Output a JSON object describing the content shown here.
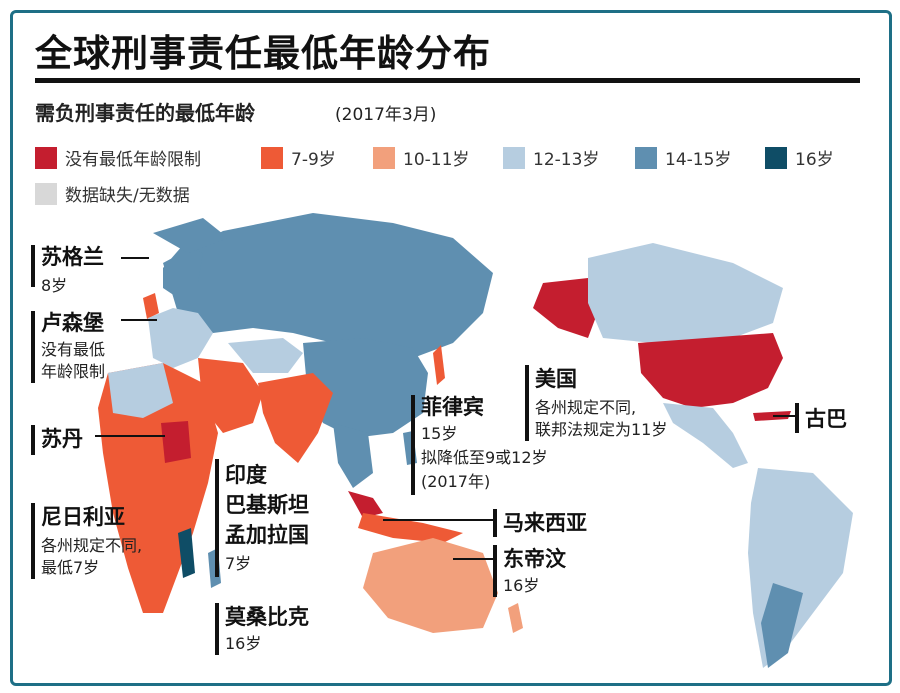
{
  "title": "全球刑事责任最低年龄分布",
  "subtitle": "需负刑事责任的最低年龄",
  "subtitle_date": "(2017年3月)",
  "legend": [
    {
      "label": "没有最低年龄限制",
      "color": "#c41e2f"
    },
    {
      "label": "7-9岁",
      "color": "#ee5a36"
    },
    {
      "label": "10-11岁",
      "color": "#f2a07c"
    },
    {
      "label": "12-13岁",
      "color": "#b6cde0"
    },
    {
      "label": "14-15岁",
      "color": "#5f8fb0"
    },
    {
      "label": "16岁",
      "color": "#0f4d66"
    },
    {
      "label": "数据缺失/无数据",
      "color": "#d8d8d8"
    }
  ],
  "annotations": {
    "scotland": {
      "name": "苏格兰",
      "detail": "8岁"
    },
    "luxembourg": {
      "name": "卢森堡",
      "detail1": "没有最低",
      "detail2": "年龄限制"
    },
    "sudan": {
      "name": "苏丹"
    },
    "nigeria": {
      "name": "尼日利亚",
      "detail1": "各州规定不同,",
      "detail2": "最低7岁"
    },
    "south_asia": {
      "name1": "印度",
      "name2": "巴基斯坦",
      "name3": "孟加拉国",
      "detail": "7岁"
    },
    "mozambique": {
      "name": "莫桑比克",
      "detail": "16岁"
    },
    "philippines": {
      "name": "菲律宾",
      "detail1": "15岁",
      "detail2": "拟降低至9或12岁",
      "detail3": "(2017年)"
    },
    "malaysia": {
      "name": "马来西亚"
    },
    "east_timor": {
      "name": "东帝汶",
      "detail": "16岁"
    },
    "usa": {
      "name": "美国",
      "detail1": "各州规定不同,",
      "detail2": "联邦法规定为11岁"
    },
    "cuba": {
      "name": "古巴"
    }
  }
}
